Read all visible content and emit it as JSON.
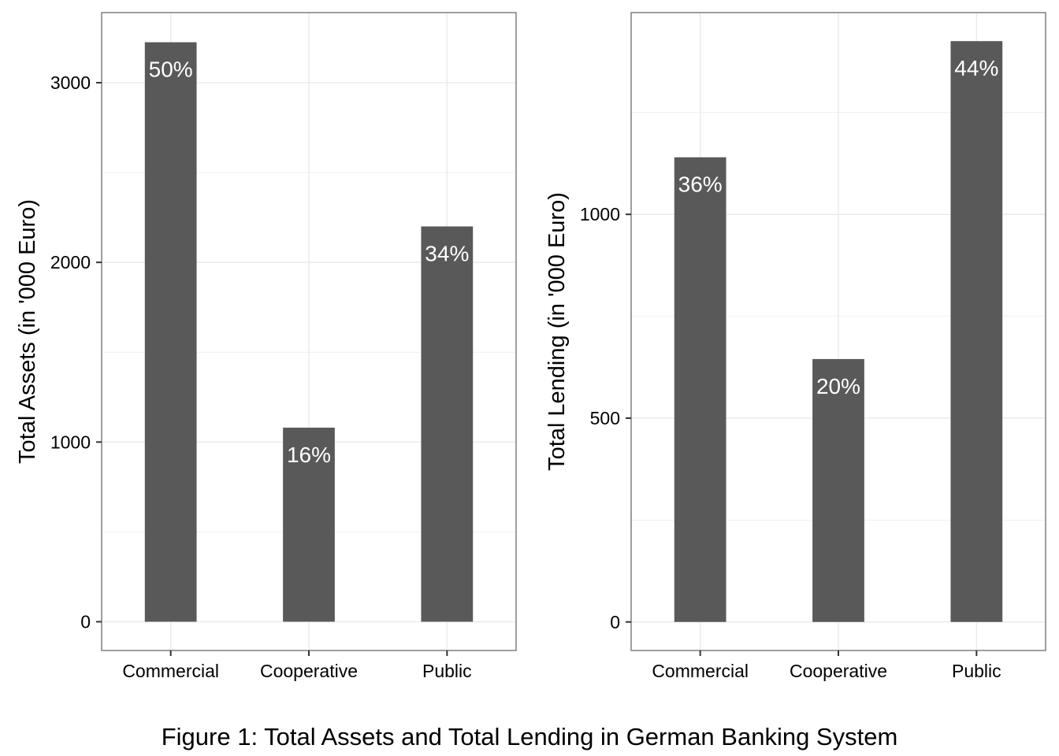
{
  "caption": "Figure 1: Total Assets and Total Lending in German Banking System",
  "colors": {
    "bar": "#595959",
    "grid": "#ebebeb",
    "panel_border": "#7f7f7f",
    "label_text": "#ffffff",
    "axis_text": "#000000"
  },
  "chart_data": [
    {
      "type": "bar",
      "title": "",
      "xlabel": "",
      "ylabel": "Total Assets (in '000 Euro)",
      "categories": [
        "Commercial",
        "Cooperative",
        "Public"
      ],
      "values": [
        3225,
        1080,
        2200
      ],
      "data_labels": [
        "50%",
        "16%",
        "34%"
      ],
      "yticks": [
        0,
        1000,
        2000,
        3000
      ],
      "ylim": [
        -160,
        3390
      ],
      "grid": true
    },
    {
      "type": "bar",
      "title": "",
      "xlabel": "",
      "ylabel": "Total Lending (in '000 Euro)",
      "categories": [
        "Commercial",
        "Cooperative",
        "Public"
      ],
      "values": [
        1140,
        645,
        1425
      ],
      "data_labels": [
        "36%",
        "20%",
        "44%"
      ],
      "yticks": [
        0,
        500,
        1000
      ],
      "ylim": [
        -70,
        1495
      ],
      "grid": true
    }
  ]
}
